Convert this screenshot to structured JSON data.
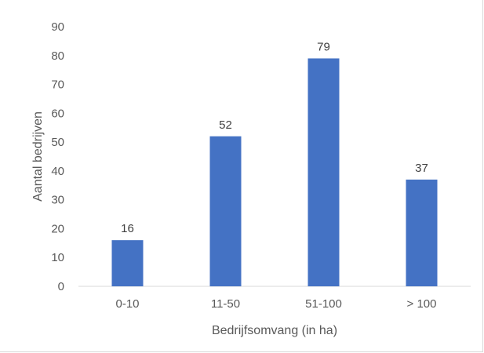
{
  "chart_data": {
    "type": "bar",
    "categories": [
      "0-10",
      "11-50",
      "51-100",
      "> 100"
    ],
    "values": [
      16,
      52,
      79,
      37
    ],
    "data_labels": [
      "16",
      "52",
      "79",
      "37"
    ],
    "title": "",
    "xlabel": "Bedrijfsomvang (in ha)",
    "ylabel": "Aantal bedrijven",
    "ylim": [
      0,
      90
    ],
    "yticks": [
      "0",
      "10",
      "20",
      "30",
      "40",
      "50",
      "60",
      "70",
      "80",
      "90"
    ],
    "grid": false,
    "legend": "none",
    "bar_color": "#4472c4"
  }
}
